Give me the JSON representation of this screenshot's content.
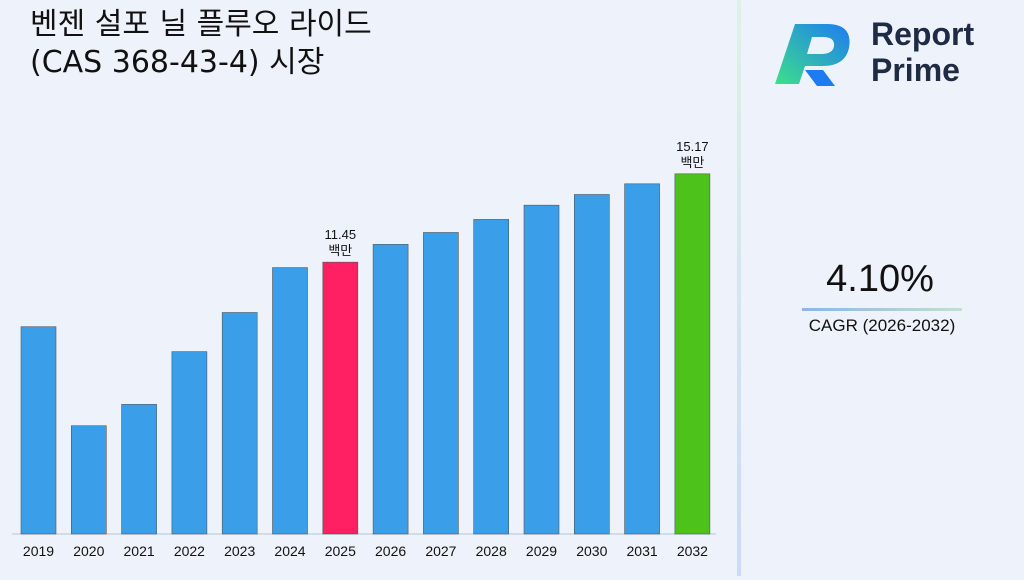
{
  "title": "벤젠 설포 닐 플루오 라이드 (CAS 368-43-4) 시장",
  "brand": {
    "line1": "Report",
    "line2": "Prime"
  },
  "cagr": {
    "value": "4.10%",
    "label": "CAGR (2026-2032)"
  },
  "colors": {
    "default_bar": "#3a9fe8",
    "highlight_2025": "#ff1f62",
    "highlight_2032": "#4dc21a"
  },
  "chart_data": {
    "type": "bar",
    "categories": [
      "2019",
      "2020",
      "2021",
      "2022",
      "2023",
      "2024",
      "2025",
      "2026",
      "2027",
      "2028",
      "2029",
      "2030",
      "2031",
      "2032"
    ],
    "values": [
      8.73,
      4.56,
      5.46,
      7.68,
      9.33,
      11.22,
      11.45,
      12.2,
      12.7,
      13.25,
      13.85,
      14.3,
      14.75,
      15.17
    ],
    "data_labels": [
      {
        "category": "2025",
        "value": "11.45",
        "unit": "백만"
      },
      {
        "category": "2032",
        "value": "15.17",
        "unit": "백만"
      }
    ],
    "highlights": {
      "2025": "#ff1f62",
      "2032": "#4dc21a"
    },
    "ylim": [
      0,
      15.5
    ],
    "grid": false,
    "legend": "none"
  }
}
